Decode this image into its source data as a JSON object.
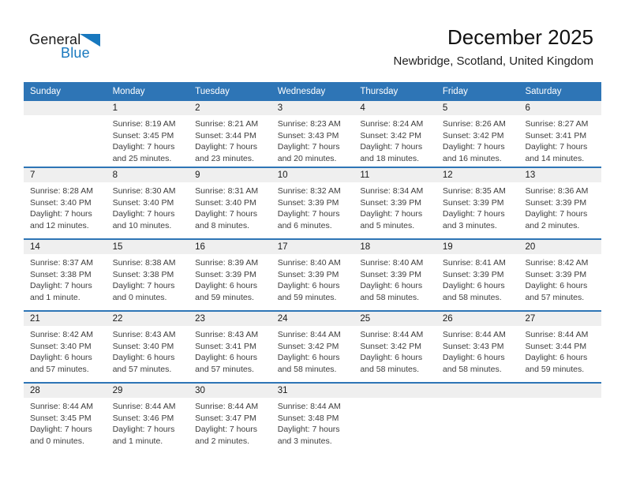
{
  "logo": {
    "general": "General",
    "blue": "Blue"
  },
  "header": {
    "title": "December 2025",
    "subtitle": "Newbridge, Scotland, United Kingdom"
  },
  "labels": {
    "sunrise": "Sunrise:",
    "sunset": "Sunset:",
    "daylight": "Daylight:"
  },
  "colors": {
    "header_bg": "#2E75B6",
    "divider": "#2E75B6",
    "day_band": "#EFEFEF",
    "logo_blue": "#1878BE",
    "header_text": "#FFFFFF"
  },
  "weekdays": [
    "Sunday",
    "Monday",
    "Tuesday",
    "Wednesday",
    "Thursday",
    "Friday",
    "Saturday"
  ],
  "weeks": [
    [
      {
        "day": ""
      },
      {
        "day": "1",
        "sunrise": "8:19 AM",
        "sunset": "3:45 PM",
        "daylight_line1": "7 hours",
        "daylight_line2": "and 25 minutes."
      },
      {
        "day": "2",
        "sunrise": "8:21 AM",
        "sunset": "3:44 PM",
        "daylight_line1": "7 hours",
        "daylight_line2": "and 23 minutes."
      },
      {
        "day": "3",
        "sunrise": "8:23 AM",
        "sunset": "3:43 PM",
        "daylight_line1": "7 hours",
        "daylight_line2": "and 20 minutes."
      },
      {
        "day": "4",
        "sunrise": "8:24 AM",
        "sunset": "3:42 PM",
        "daylight_line1": "7 hours",
        "daylight_line2": "and 18 minutes."
      },
      {
        "day": "5",
        "sunrise": "8:26 AM",
        "sunset": "3:42 PM",
        "daylight_line1": "7 hours",
        "daylight_line2": "and 16 minutes."
      },
      {
        "day": "6",
        "sunrise": "8:27 AM",
        "sunset": "3:41 PM",
        "daylight_line1": "7 hours",
        "daylight_line2": "and 14 minutes."
      }
    ],
    [
      {
        "day": "7",
        "sunrise": "8:28 AM",
        "sunset": "3:40 PM",
        "daylight_line1": "7 hours",
        "daylight_line2": "and 12 minutes."
      },
      {
        "day": "8",
        "sunrise": "8:30 AM",
        "sunset": "3:40 PM",
        "daylight_line1": "7 hours",
        "daylight_line2": "and 10 minutes."
      },
      {
        "day": "9",
        "sunrise": "8:31 AM",
        "sunset": "3:40 PM",
        "daylight_line1": "7 hours",
        "daylight_line2": "and 8 minutes."
      },
      {
        "day": "10",
        "sunrise": "8:32 AM",
        "sunset": "3:39 PM",
        "daylight_line1": "7 hours",
        "daylight_line2": "and 6 minutes."
      },
      {
        "day": "11",
        "sunrise": "8:34 AM",
        "sunset": "3:39 PM",
        "daylight_line1": "7 hours",
        "daylight_line2": "and 5 minutes."
      },
      {
        "day": "12",
        "sunrise": "8:35 AM",
        "sunset": "3:39 PM",
        "daylight_line1": "7 hours",
        "daylight_line2": "and 3 minutes."
      },
      {
        "day": "13",
        "sunrise": "8:36 AM",
        "sunset": "3:39 PM",
        "daylight_line1": "7 hours",
        "daylight_line2": "and 2 minutes."
      }
    ],
    [
      {
        "day": "14",
        "sunrise": "8:37 AM",
        "sunset": "3:38 PM",
        "daylight_line1": "7 hours",
        "daylight_line2": "and 1 minute."
      },
      {
        "day": "15",
        "sunrise": "8:38 AM",
        "sunset": "3:38 PM",
        "daylight_line1": "7 hours",
        "daylight_line2": "and 0 minutes."
      },
      {
        "day": "16",
        "sunrise": "8:39 AM",
        "sunset": "3:39 PM",
        "daylight_line1": "6 hours",
        "daylight_line2": "and 59 minutes."
      },
      {
        "day": "17",
        "sunrise": "8:40 AM",
        "sunset": "3:39 PM",
        "daylight_line1": "6 hours",
        "daylight_line2": "and 59 minutes."
      },
      {
        "day": "18",
        "sunrise": "8:40 AM",
        "sunset": "3:39 PM",
        "daylight_line1": "6 hours",
        "daylight_line2": "and 58 minutes."
      },
      {
        "day": "19",
        "sunrise": "8:41 AM",
        "sunset": "3:39 PM",
        "daylight_line1": "6 hours",
        "daylight_line2": "and 58 minutes."
      },
      {
        "day": "20",
        "sunrise": "8:42 AM",
        "sunset": "3:39 PM",
        "daylight_line1": "6 hours",
        "daylight_line2": "and 57 minutes."
      }
    ],
    [
      {
        "day": "21",
        "sunrise": "8:42 AM",
        "sunset": "3:40 PM",
        "daylight_line1": "6 hours",
        "daylight_line2": "and 57 minutes."
      },
      {
        "day": "22",
        "sunrise": "8:43 AM",
        "sunset": "3:40 PM",
        "daylight_line1": "6 hours",
        "daylight_line2": "and 57 minutes."
      },
      {
        "day": "23",
        "sunrise": "8:43 AM",
        "sunset": "3:41 PM",
        "daylight_line1": "6 hours",
        "daylight_line2": "and 57 minutes."
      },
      {
        "day": "24",
        "sunrise": "8:44 AM",
        "sunset": "3:42 PM",
        "daylight_line1": "6 hours",
        "daylight_line2": "and 58 minutes."
      },
      {
        "day": "25",
        "sunrise": "8:44 AM",
        "sunset": "3:42 PM",
        "daylight_line1": "6 hours",
        "daylight_line2": "and 58 minutes."
      },
      {
        "day": "26",
        "sunrise": "8:44 AM",
        "sunset": "3:43 PM",
        "daylight_line1": "6 hours",
        "daylight_line2": "and 58 minutes."
      },
      {
        "day": "27",
        "sunrise": "8:44 AM",
        "sunset": "3:44 PM",
        "daylight_line1": "6 hours",
        "daylight_line2": "and 59 minutes."
      }
    ],
    [
      {
        "day": "28",
        "sunrise": "8:44 AM",
        "sunset": "3:45 PM",
        "daylight_line1": "7 hours",
        "daylight_line2": "and 0 minutes."
      },
      {
        "day": "29",
        "sunrise": "8:44 AM",
        "sunset": "3:46 PM",
        "daylight_line1": "7 hours",
        "daylight_line2": "and 1 minute."
      },
      {
        "day": "30",
        "sunrise": "8:44 AM",
        "sunset": "3:47 PM",
        "daylight_line1": "7 hours",
        "daylight_line2": "and 2 minutes."
      },
      {
        "day": "31",
        "sunrise": "8:44 AM",
        "sunset": "3:48 PM",
        "daylight_line1": "7 hours",
        "daylight_line2": "and 3 minutes."
      },
      {
        "day": ""
      },
      {
        "day": ""
      },
      {
        "day": ""
      }
    ]
  ]
}
